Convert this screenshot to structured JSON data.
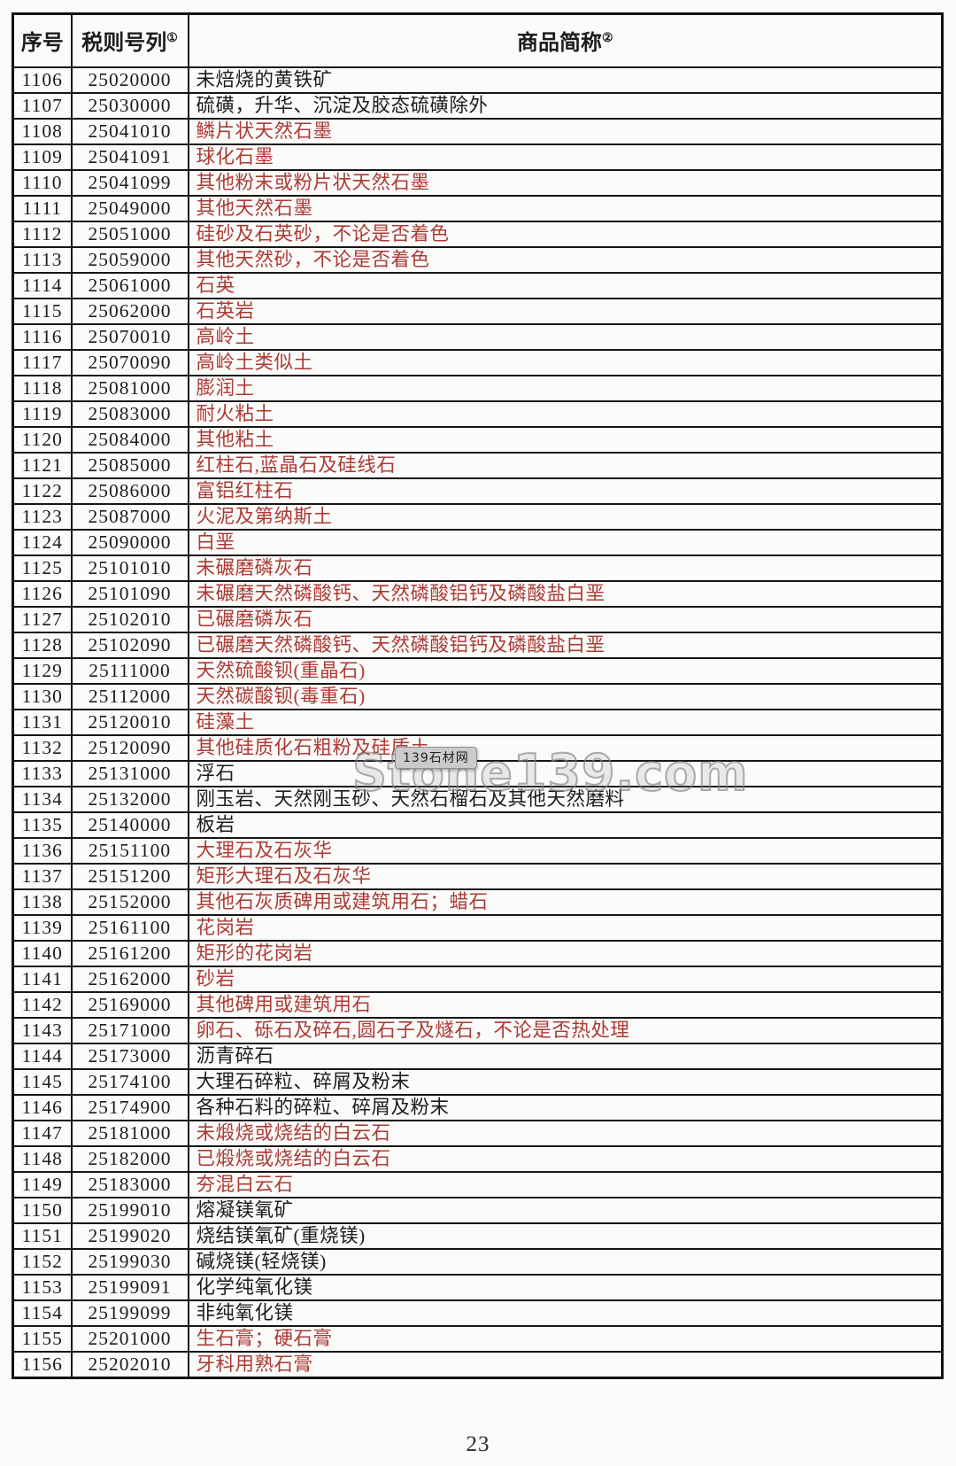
{
  "colors": {
    "red": "#ac3a33",
    "ink": "#1c1c1c"
  },
  "header": {
    "col_no": "序号",
    "col_code": "税则号列",
    "col_code_sup": "①",
    "col_name": "商品简称",
    "col_name_sup": "②"
  },
  "footer": {
    "page_number": "23"
  },
  "watermark": {
    "badge": "139石材网",
    "big_text": "Stone139.com"
  },
  "rows": [
    {
      "no": "1106",
      "code": "25020000",
      "name": "未焙烧的黄铁矿",
      "red": false
    },
    {
      "no": "1107",
      "code": "25030000",
      "name": "硫磺，升华、沉淀及胶态硫磺除外",
      "red": false
    },
    {
      "no": "1108",
      "code": "25041010",
      "name": "鳞片状天然石墨",
      "red": true
    },
    {
      "no": "1109",
      "code": "25041091",
      "name": "球化石墨",
      "red": true
    },
    {
      "no": "1110",
      "code": "25041099",
      "name": "其他粉末或粉片状天然石墨",
      "red": true
    },
    {
      "no": "1111",
      "code": "25049000",
      "name": "其他天然石墨",
      "red": true
    },
    {
      "no": "1112",
      "code": "25051000",
      "name": "硅砂及石英砂，不论是否着色",
      "red": true
    },
    {
      "no": "1113",
      "code": "25059000",
      "name": "其他天然砂，不论是否着色",
      "red": true
    },
    {
      "no": "1114",
      "code": "25061000",
      "name": "石英",
      "red": true
    },
    {
      "no": "1115",
      "code": "25062000",
      "name": "石英岩",
      "red": true
    },
    {
      "no": "1116",
      "code": "25070010",
      "name": "高岭土",
      "red": true
    },
    {
      "no": "1117",
      "code": "25070090",
      "name": "高岭土类似土",
      "red": true
    },
    {
      "no": "1118",
      "code": "25081000",
      "name": "膨润土",
      "red": true
    },
    {
      "no": "1119",
      "code": "25083000",
      "name": "耐火粘土",
      "red": true
    },
    {
      "no": "1120",
      "code": "25084000",
      "name": "其他粘土",
      "red": true
    },
    {
      "no": "1121",
      "code": "25085000",
      "name": "红柱石,蓝晶石及硅线石",
      "red": true
    },
    {
      "no": "1122",
      "code": "25086000",
      "name": "富铝红柱石",
      "red": true
    },
    {
      "no": "1123",
      "code": "25087000",
      "name": "火泥及第纳斯土",
      "red": true
    },
    {
      "no": "1124",
      "code": "25090000",
      "name": "白垩",
      "red": true
    },
    {
      "no": "1125",
      "code": "25101010",
      "name": "未碾磨磷灰石",
      "red": true
    },
    {
      "no": "1126",
      "code": "25101090",
      "name": "未碾磨天然磷酸钙、天然磷酸铝钙及磷酸盐白垩",
      "red": true
    },
    {
      "no": "1127",
      "code": "25102010",
      "name": "已碾磨磷灰石",
      "red": true
    },
    {
      "no": "1128",
      "code": "25102090",
      "name": "已碾磨天然磷酸钙、天然磷酸铝钙及磷酸盐白垩",
      "red": true
    },
    {
      "no": "1129",
      "code": "25111000",
      "name": "天然硫酸钡(重晶石)",
      "red": true
    },
    {
      "no": "1130",
      "code": "25112000",
      "name": "天然碳酸钡(毒重石)",
      "red": true
    },
    {
      "no": "1131",
      "code": "25120010",
      "name": "硅藻土",
      "red": true
    },
    {
      "no": "1132",
      "code": "25120090",
      "name": "其他硅质化石粗粉及硅质土",
      "red": true
    },
    {
      "no": "1133",
      "code": "25131000",
      "name": "浮石",
      "red": false
    },
    {
      "no": "1134",
      "code": "25132000",
      "name": "刚玉岩、天然刚玉砂、天然石榴石及其他天然磨料",
      "red": false
    },
    {
      "no": "1135",
      "code": "25140000",
      "name": "板岩",
      "red": false
    },
    {
      "no": "1136",
      "code": "25151100",
      "name": "大理石及石灰华",
      "red": true
    },
    {
      "no": "1137",
      "code": "25151200",
      "name": "矩形大理石及石灰华",
      "red": true
    },
    {
      "no": "1138",
      "code": "25152000",
      "name": "其他石灰质碑用或建筑用石；蜡石",
      "red": true
    },
    {
      "no": "1139",
      "code": "25161100",
      "name": "花岗岩",
      "red": true
    },
    {
      "no": "1140",
      "code": "25161200",
      "name": "矩形的花岗岩",
      "red": true
    },
    {
      "no": "1141",
      "code": "25162000",
      "name": "砂岩",
      "red": true
    },
    {
      "no": "1142",
      "code": "25169000",
      "name": "其他碑用或建筑用石",
      "red": true
    },
    {
      "no": "1143",
      "code": "25171000",
      "name": "卵石、砾石及碎石,圆石子及燧石，不论是否热处理",
      "red": true
    },
    {
      "no": "1144",
      "code": "25173000",
      "name": "沥青碎石",
      "red": false
    },
    {
      "no": "1145",
      "code": "25174100",
      "name": "大理石碎粒、碎屑及粉末",
      "red": false
    },
    {
      "no": "1146",
      "code": "25174900",
      "name": "各种石料的碎粒、碎屑及粉末",
      "red": false
    },
    {
      "no": "1147",
      "code": "25181000",
      "name": "未煅烧或烧结的白云石",
      "red": true
    },
    {
      "no": "1148",
      "code": "25182000",
      "name": "已煅烧或烧结的白云石",
      "red": true
    },
    {
      "no": "1149",
      "code": "25183000",
      "name": "夯混白云石",
      "red": true
    },
    {
      "no": "1150",
      "code": "25199010",
      "name": "熔凝镁氧矿",
      "red": false
    },
    {
      "no": "1151",
      "code": "25199020",
      "name": "烧结镁氧矿(重烧镁)",
      "red": false
    },
    {
      "no": "1152",
      "code": "25199030",
      "name": "碱烧镁(轻烧镁)",
      "red": false
    },
    {
      "no": "1153",
      "code": "25199091",
      "name": "化学纯氧化镁",
      "red": false
    },
    {
      "no": "1154",
      "code": "25199099",
      "name": "非纯氧化镁",
      "red": false
    },
    {
      "no": "1155",
      "code": "25201000",
      "name": "生石膏；硬石膏",
      "red": true
    },
    {
      "no": "1156",
      "code": "25202010",
      "name": "牙科用熟石膏",
      "red": true
    }
  ]
}
